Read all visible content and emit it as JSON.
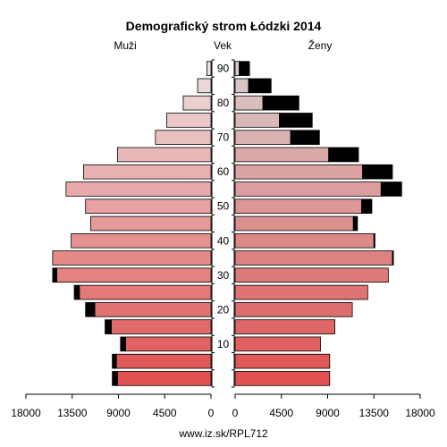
{
  "chart_data": {
    "type": "bar",
    "orientation": "horizontal-population-pyramid",
    "title": "Demografický strom Łódzki 2014",
    "left_label": "Muži",
    "center_label": "Vek",
    "right_label": "Ženy",
    "source": "www.iz.sk/RPL712",
    "x_ticks_left": [
      "18000",
      "13500",
      "9000",
      "4500",
      "0"
    ],
    "x_ticks_right": [
      "0",
      "4500",
      "9000",
      "13500",
      "18000"
    ],
    "x_max": 18000,
    "age_ticks": [
      "10",
      "20",
      "30",
      "40",
      "50",
      "60",
      "70",
      "80",
      "90"
    ],
    "age_groups": [
      "0-4",
      "5-9",
      "10-14",
      "15-19",
      "20-24",
      "25-29",
      "30-34",
      "35-39",
      "40-44",
      "45-49",
      "50-54",
      "55-59",
      "60-64",
      "65-69",
      "70-74",
      "75-79",
      "80-84",
      "85-89",
      "90+"
    ],
    "series": [
      {
        "name": "Muži",
        "values": [
          9100,
          9200,
          8300,
          9700,
          11300,
          12800,
          15000,
          15400,
          13600,
          11700,
          12200,
          14100,
          12400,
          9100,
          5400,
          4300,
          2700,
          1300,
          400
        ]
      },
      {
        "name": "Muži (prebytok)",
        "values": [
          500,
          400,
          500,
          600,
          900,
          500,
          400,
          0,
          0,
          0,
          0,
          0,
          0,
          0,
          0,
          0,
          0,
          0,
          0
        ]
      },
      {
        "name": "Ženy",
        "values": [
          9200,
          9200,
          8300,
          9700,
          11400,
          12900,
          14900,
          15300,
          13500,
          11500,
          12300,
          14200,
          12400,
          9100,
          5400,
          4300,
          2700,
          1300,
          400
        ]
      },
      {
        "name": "Ženy (prebytok)",
        "values": [
          0,
          0,
          0,
          0,
          0,
          0,
          0,
          100,
          100,
          400,
          1000,
          2000,
          2900,
          2900,
          2800,
          3200,
          3500,
          2200,
          1000
        ]
      }
    ],
    "colors": {
      "excess": "#000000",
      "male_young": "#e05252",
      "male_old": "#ece0e0",
      "female_young": "#e05252",
      "female_old": "#d8cccc",
      "axis": "#000000"
    }
  }
}
